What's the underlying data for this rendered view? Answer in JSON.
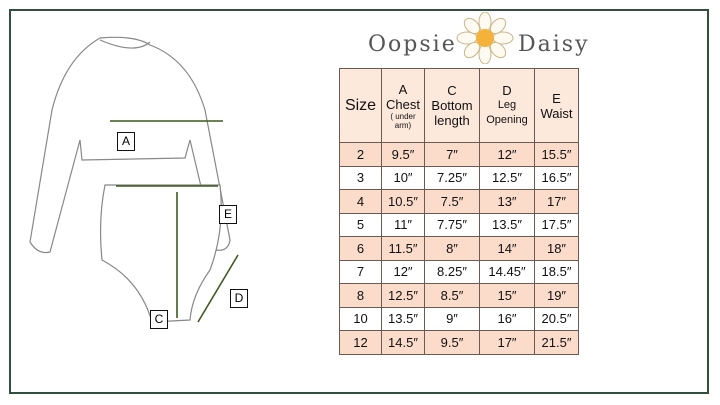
{
  "brand": {
    "left": "Oopsie",
    "right": "Daisy"
  },
  "diagram_labels": {
    "a": "A",
    "c": "C",
    "d": "D",
    "e": "E"
  },
  "colors": {
    "frame": "#2f4f3f",
    "header_bg": "#fde8dc",
    "row_alt": "#fbdccb",
    "measure_line": "#3d5a1e"
  },
  "table": {
    "headers": [
      {
        "letter": "",
        "name": "Size",
        "note": ""
      },
      {
        "letter": "A",
        "name": "Chest",
        "note": "( under arm)"
      },
      {
        "letter": "C",
        "name": "Bottom length",
        "note": ""
      },
      {
        "letter": "D",
        "name": "Leg Opening",
        "note": ""
      },
      {
        "letter": "E",
        "name": "Waist",
        "note": ""
      }
    ],
    "rows": [
      [
        "2",
        "9.5″",
        "7″",
        "12″",
        "15.5″"
      ],
      [
        "3",
        "10″",
        "7.25″",
        "12.5″",
        "16.5″"
      ],
      [
        "4",
        "10.5″",
        "7.5″",
        "13″",
        "17″"
      ],
      [
        "5",
        "11″",
        "7.75″",
        "13.5″",
        "17.5″"
      ],
      [
        "6",
        "11.5″",
        "8″",
        "14″",
        "18″"
      ],
      [
        "7",
        "12″",
        "8.25″",
        "14.45″",
        "18.5″"
      ],
      [
        "8",
        "12.5″",
        "8.5″",
        "15″",
        "19″"
      ],
      [
        "10",
        "13.5″",
        "9″",
        "16″",
        "20.5″"
      ],
      [
        "12",
        "14.5″",
        "9.5″",
        "17″",
        "21.5″"
      ]
    ]
  }
}
